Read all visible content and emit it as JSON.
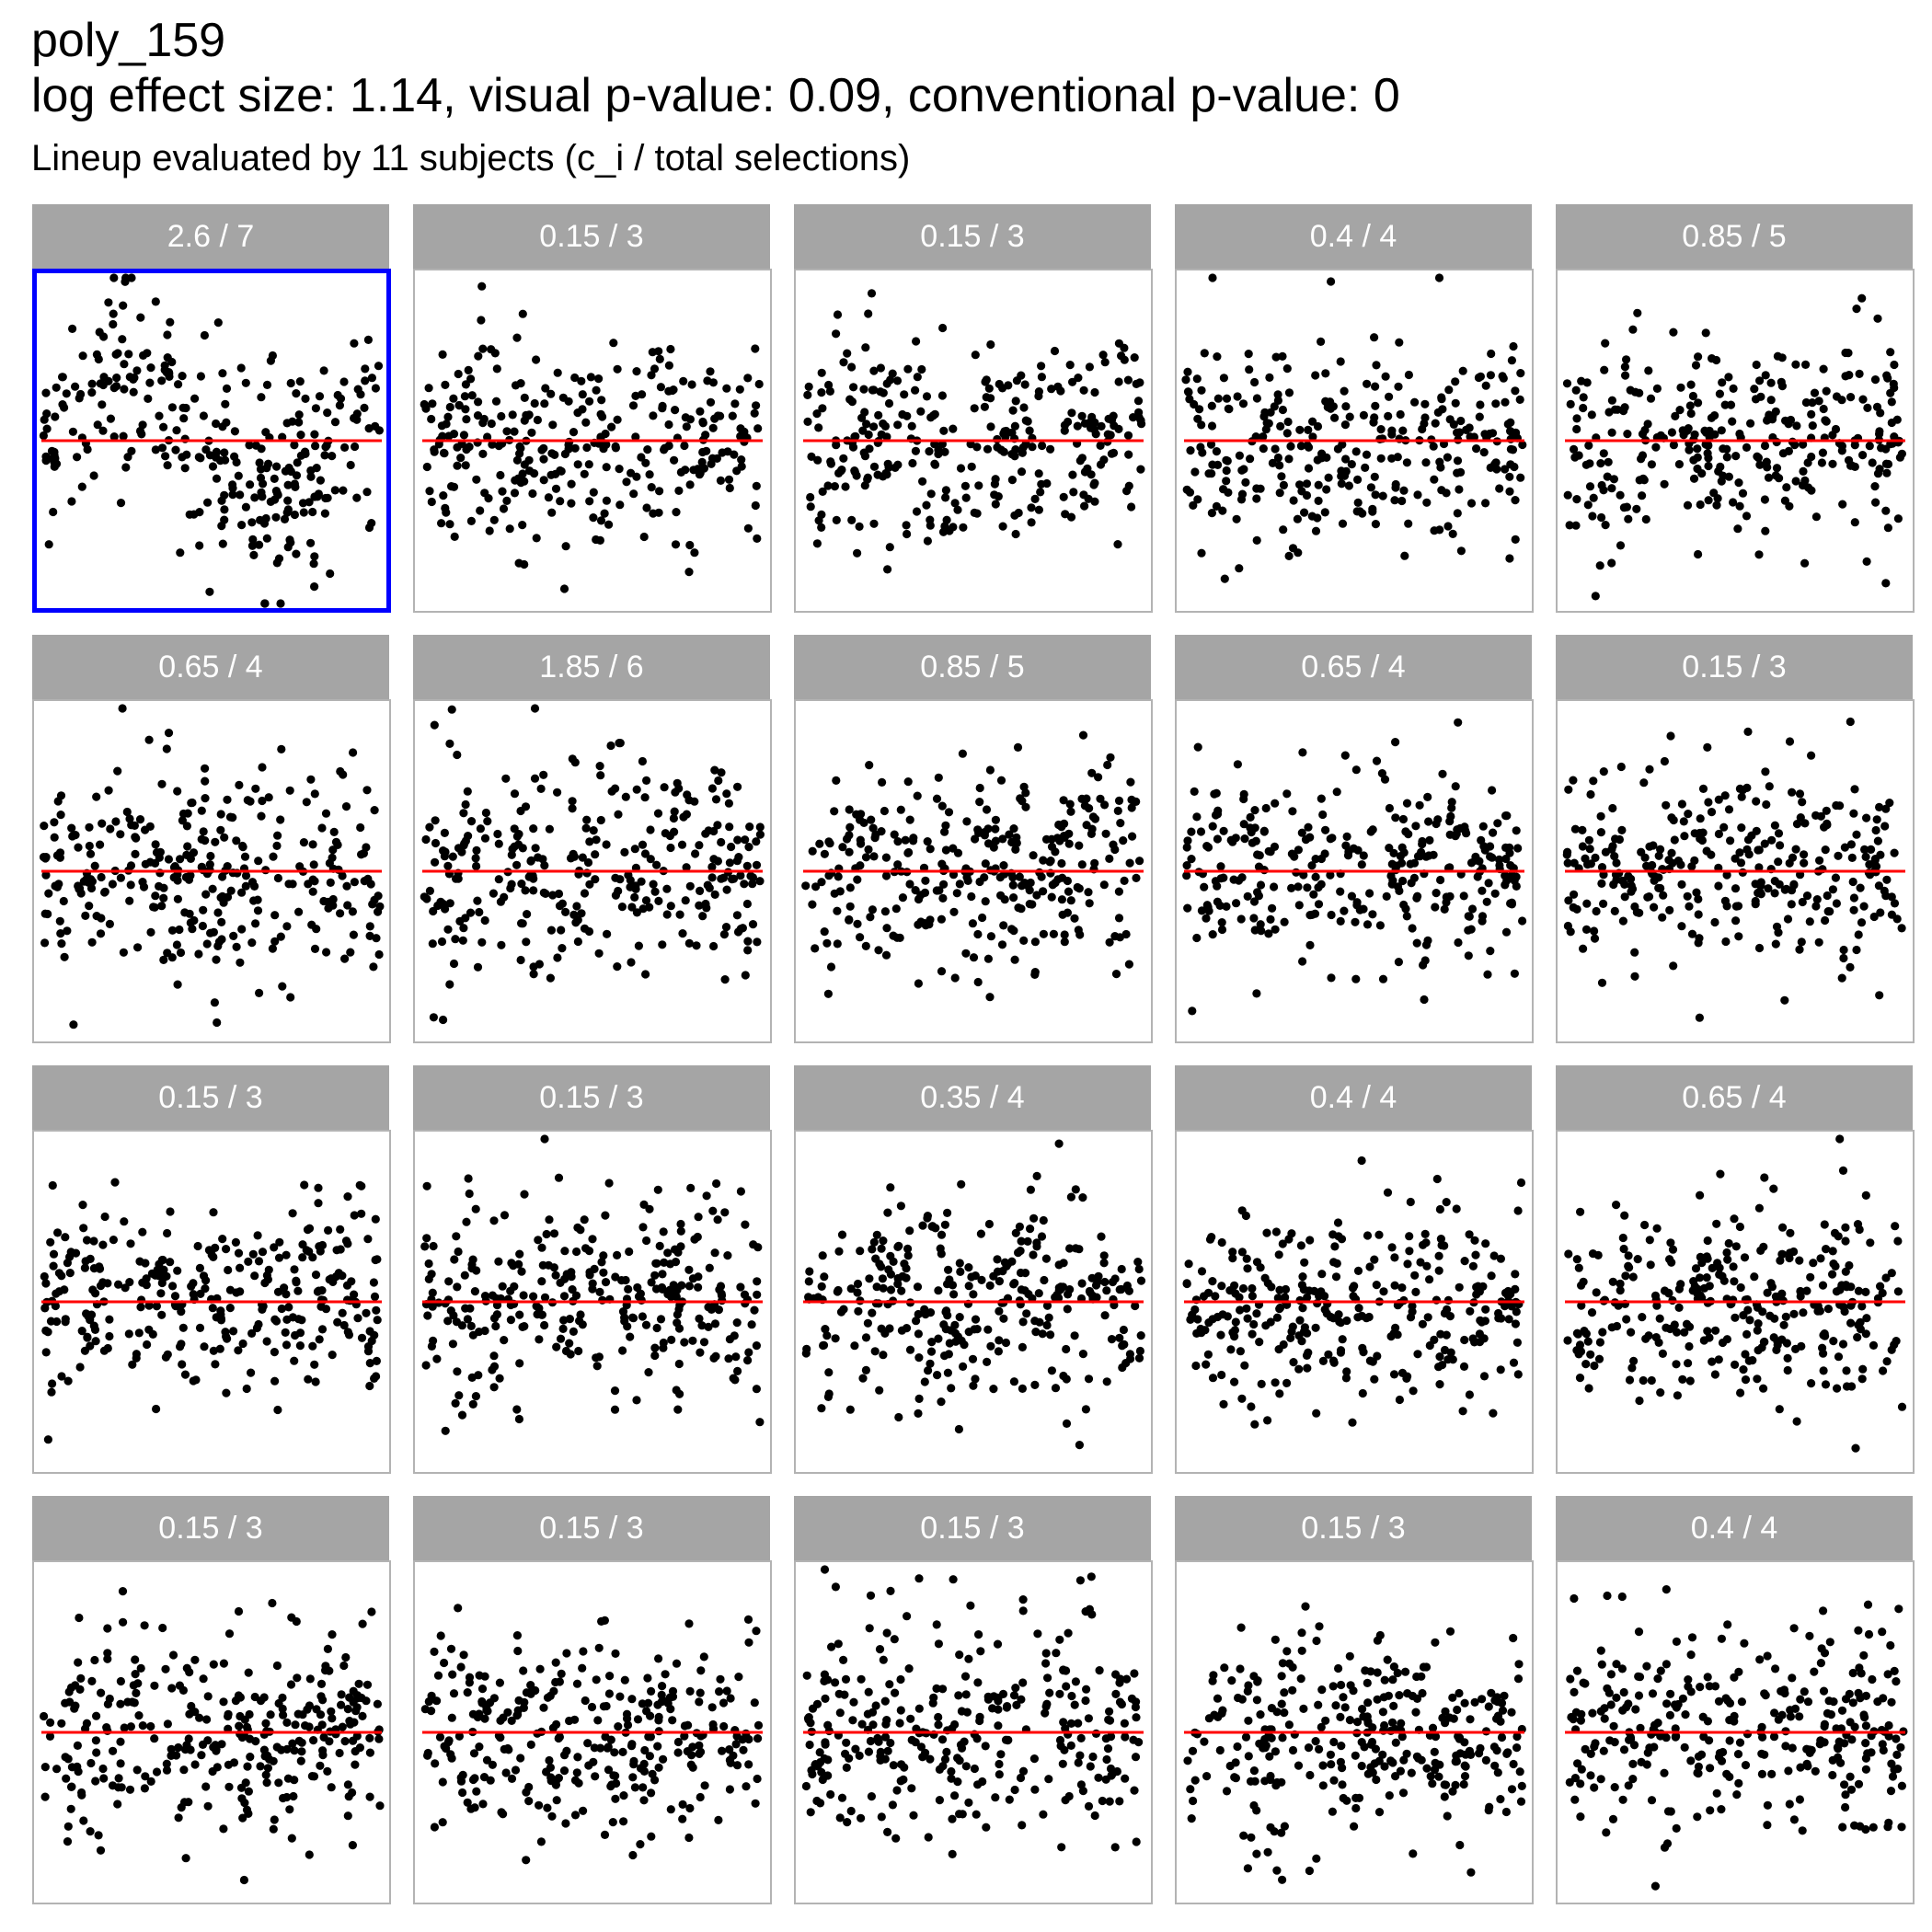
{
  "header": {
    "title": "poly_159",
    "stats": "log effect size: 1.14, visual p-value: 0.09, conventional p-value: 0",
    "subtitle": "Lineup evaluated by 11 subjects (c_i / total selections)"
  },
  "chart_data": {
    "type": "scatter",
    "layout": "lineup 4x5 small multiples",
    "points_per_panel_approx": 300,
    "reference_line": {
      "y": 0,
      "color": "#ff0000"
    },
    "point_color": "#000000",
    "strip_color": "#a5a5a5",
    "highlight_color": "#0000ff",
    "highlighted_panel_index": 0,
    "panel_labels": [
      "2.6 / 7",
      "0.15 / 3",
      "0.15 / 3",
      "0.4 / 4",
      "0.85 / 5",
      "0.65 / 4",
      "1.85 / 6",
      "0.85 / 5",
      "0.65 / 4",
      "0.15 / 3",
      "0.15 / 3",
      "0.15 / 3",
      "0.35 / 4",
      "0.4 / 4",
      "0.65 / 4",
      "0.15 / 3",
      "0.15 / 3",
      "0.15 / 3",
      "0.15 / 3",
      "0.4 / 4"
    ],
    "xlabel": "",
    "ylabel": "",
    "grid": false
  }
}
